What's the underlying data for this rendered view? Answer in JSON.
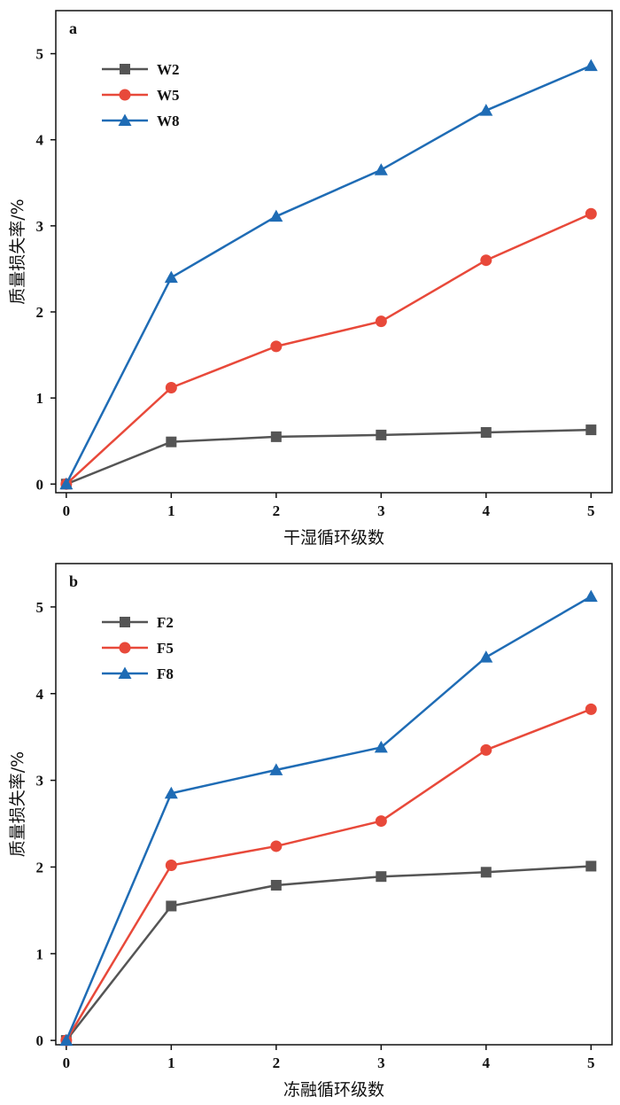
{
  "chart_data": [
    {
      "type": "line",
      "panel_label": "a",
      "xlabel": "干湿循环级数",
      "ylabel": "质量损失率/%",
      "x": [
        0,
        1,
        2,
        3,
        4,
        5
      ],
      "xlim": [
        -0.1,
        5.2
      ],
      "ylim": [
        -0.1,
        5.5
      ],
      "xticks": [
        "0",
        "1",
        "2",
        "3",
        "4",
        "5"
      ],
      "yticks": [
        "0",
        "1",
        "2",
        "3",
        "4",
        "5"
      ],
      "grid": false,
      "legend_position": "top-left",
      "series": [
        {
          "name": "W2",
          "color": "#555555",
          "marker": "square",
          "values": [
            0,
            0.49,
            0.55,
            0.57,
            0.6,
            0.63
          ]
        },
        {
          "name": "W5",
          "color": "#E8493A",
          "marker": "circle",
          "values": [
            0,
            1.12,
            1.6,
            1.89,
            2.6,
            3.14
          ]
        },
        {
          "name": "W8",
          "color": "#1F6CB5",
          "marker": "triangle",
          "values": [
            0,
            2.4,
            3.11,
            3.65,
            4.34,
            4.86
          ]
        }
      ]
    },
    {
      "type": "line",
      "panel_label": "b",
      "xlabel": "冻融循环级数",
      "ylabel": "质量损失率/%",
      "x": [
        0,
        1,
        2,
        3,
        4,
        5
      ],
      "xlim": [
        -0.1,
        5.2
      ],
      "ylim": [
        -0.05,
        5.5
      ],
      "xticks": [
        "0",
        "1",
        "2",
        "3",
        "4",
        "5"
      ],
      "yticks": [
        "0",
        "1",
        "2",
        "3",
        "4",
        "5"
      ],
      "grid": false,
      "legend_position": "top-left",
      "series": [
        {
          "name": "F2",
          "color": "#555555",
          "marker": "square",
          "values": [
            0,
            1.55,
            1.79,
            1.89,
            1.94,
            2.01
          ]
        },
        {
          "name": "F5",
          "color": "#E8493A",
          "marker": "circle",
          "values": [
            0,
            2.02,
            2.24,
            2.53,
            3.35,
            3.82
          ]
        },
        {
          "name": "F8",
          "color": "#1F6CB5",
          "marker": "triangle",
          "values": [
            0,
            2.85,
            3.12,
            3.38,
            4.42,
            5.12
          ]
        }
      ]
    }
  ]
}
